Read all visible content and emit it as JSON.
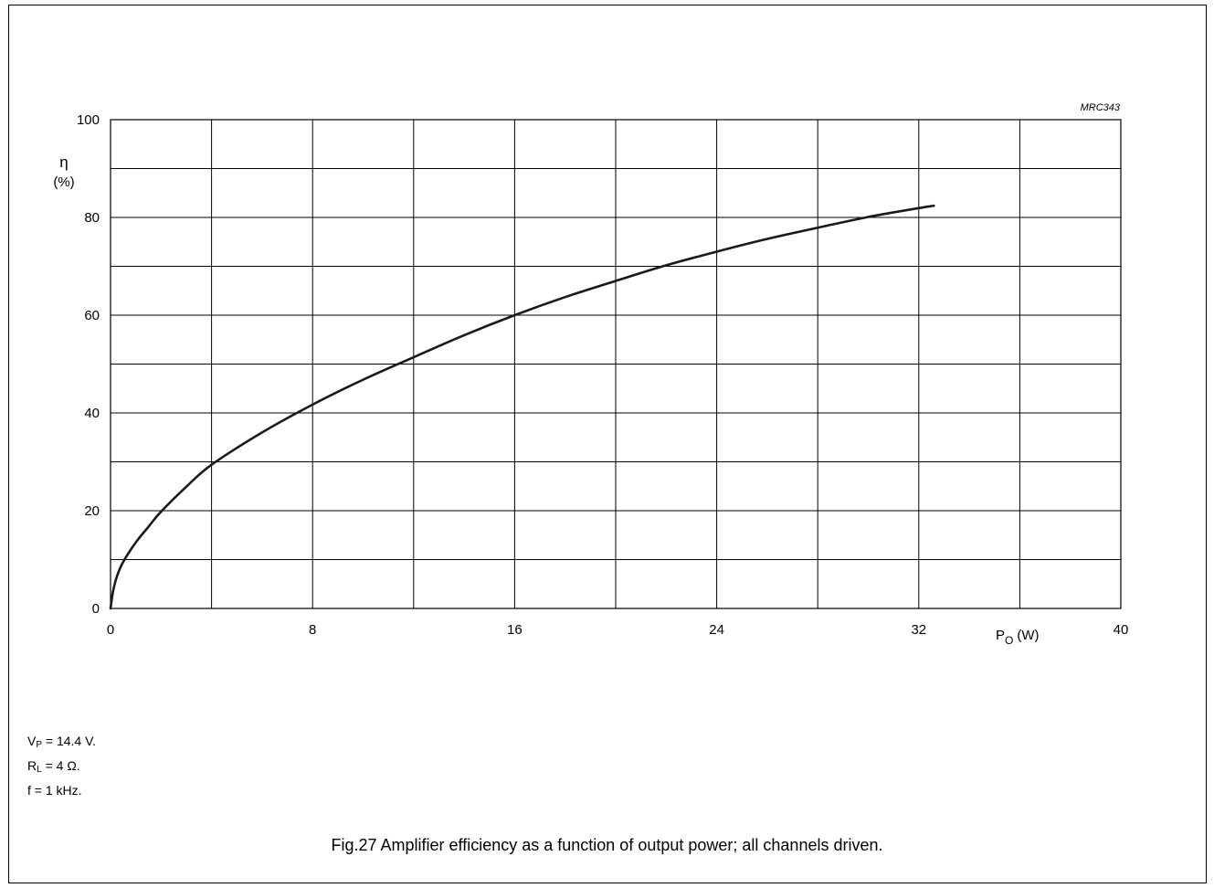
{
  "chart_data": {
    "type": "line",
    "code": "MRC343",
    "ylabel": {
      "symbol": "η",
      "unit": "(%)"
    },
    "xlabel": {
      "symbol": "P",
      "subscript": "O",
      "unit": "(W)"
    },
    "xlim": [
      0,
      40
    ],
    "ylim": [
      0,
      100
    ],
    "x_ticks": [
      0,
      8,
      16,
      24,
      32,
      40
    ],
    "y_ticks": [
      0,
      20,
      40,
      60,
      80,
      100
    ],
    "grid": true,
    "series": [
      {
        "x": [
          0,
          0.1,
          0.25,
          0.5,
          1,
          1.5,
          2,
          3,
          4,
          6,
          8,
          10,
          12,
          14,
          16,
          18,
          20,
          22,
          24,
          26,
          28,
          30,
          32,
          32.6
        ],
        "y": [
          0,
          3.5,
          6.5,
          9.5,
          13.5,
          16.7,
          19.8,
          24.9,
          29.4,
          36.0,
          41.7,
          46.8,
          51.4,
          55.9,
          60.0,
          63.7,
          67.0,
          70.2,
          73.0,
          75.6,
          77.9,
          80.1,
          81.9,
          82.4
        ]
      }
    ]
  },
  "conditions": [
    {
      "pre": "V",
      "sub": "P",
      "post": " = 14.4 V."
    },
    {
      "pre": "R",
      "sub": "L",
      "post": " = 4 Ω."
    },
    {
      "pre": "f = 1 kHz.",
      "sub": "",
      "post": ""
    }
  ],
  "caption": "Fig.27  Amplifier efficiency as a function of output power; all channels driven."
}
